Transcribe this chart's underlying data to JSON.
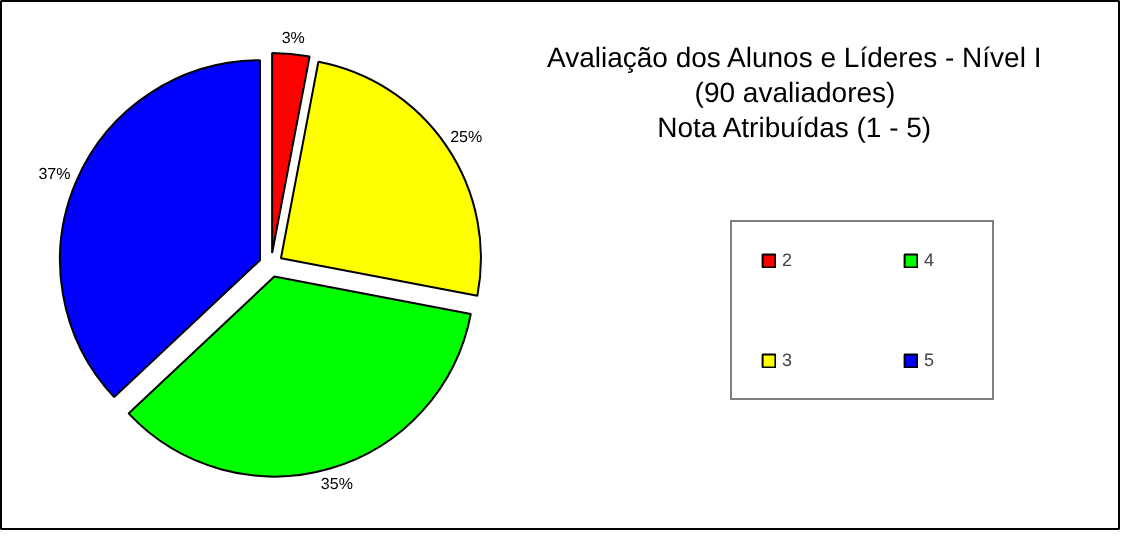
{
  "chart_data": {
    "type": "pie",
    "title": "Avaliação dos Alunos e Líderes - Nível I\n(90 avaliadores)\nNota Atribuídas (1 - 5)",
    "categories": [
      "2",
      "3",
      "4",
      "5"
    ],
    "values": [
      3,
      25,
      35,
      37
    ],
    "colors": [
      "#ff0000",
      "#ffff00",
      "#00ff00",
      "#0000ff"
    ],
    "value_labels": [
      "3%",
      "25%",
      "35%",
      "37%"
    ],
    "legend": "right"
  }
}
